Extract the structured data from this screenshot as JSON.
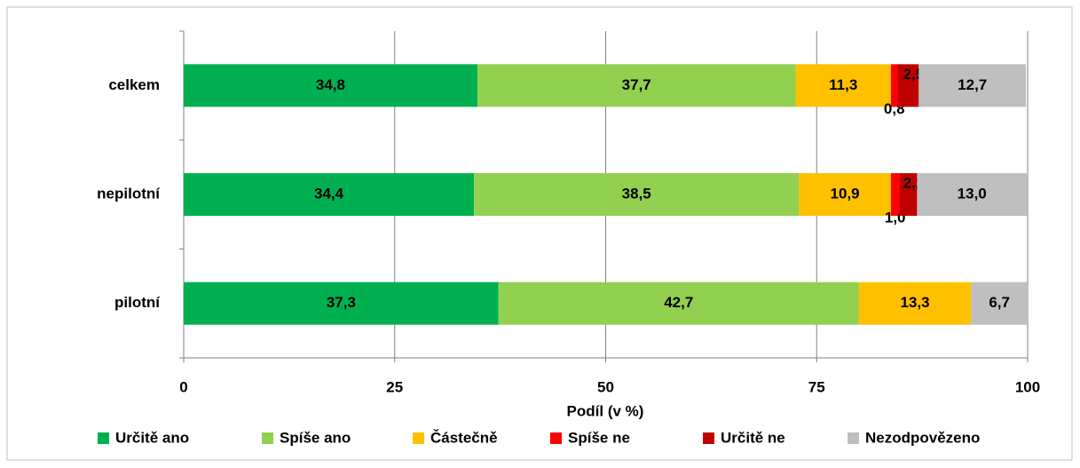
{
  "chart_data": {
    "type": "stacked-bar-horizontal",
    "categories": [
      "celkem",
      "nepilotní",
      "pilotní"
    ],
    "x_label": "Podíl (v %)",
    "xlim": [
      0,
      100
    ],
    "xticks": [
      0,
      25,
      50,
      75,
      100
    ],
    "grid": true,
    "legend": "bottom",
    "series": [
      {
        "name": "Určitě ano",
        "color": "#00b050",
        "values": [
          34.8,
          34.4,
          37.3
        ],
        "value_labels": [
          "34,8",
          "34,4",
          "37,3"
        ]
      },
      {
        "name": "Spíše ano",
        "color": "#92d050",
        "values": [
          37.7,
          38.5,
          42.7
        ],
        "value_labels": [
          "37,7",
          "38,5",
          "42,7"
        ]
      },
      {
        "name": "Částečně",
        "color": "#ffc000",
        "values": [
          11.3,
          10.9,
          13.3
        ],
        "value_labels": [
          "11,3",
          "10,9",
          "13,3"
        ]
      },
      {
        "name": "Spíše ne",
        "color": "#ff0000",
        "values": [
          0.8,
          1.0,
          null
        ],
        "value_labels": [
          "0,8",
          "1,0",
          null
        ]
      },
      {
        "name": "Určitě ne",
        "color": "#c00000",
        "values": [
          2.5,
          2.1,
          null
        ],
        "value_labels": [
          "2,5",
          "2,1",
          null
        ]
      },
      {
        "name": "Nezodpovězeno",
        "color": "#bfbfbf",
        "values": [
          12.7,
          13.0,
          6.7
        ],
        "value_labels": [
          "12,7",
          "13,0",
          "6,7"
        ]
      }
    ]
  }
}
